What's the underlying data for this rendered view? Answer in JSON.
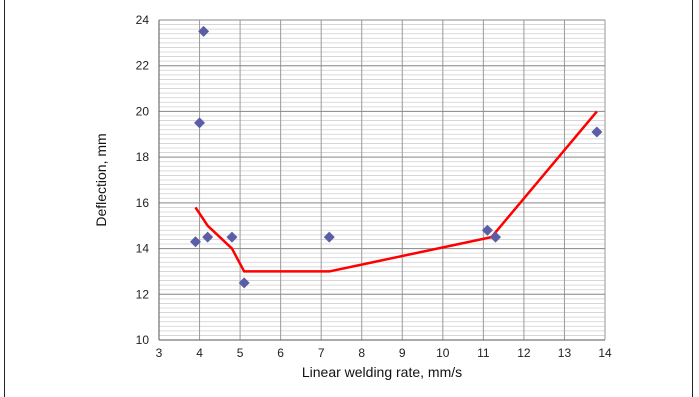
{
  "chart_data": {
    "type": "scatter",
    "title": "",
    "xlabel": "Linear welding rate, mm/s",
    "ylabel": "Deflection, mm",
    "xlim": [
      3,
      14
    ],
    "ylim": [
      10,
      24
    ],
    "x_ticks": [
      3,
      4,
      5,
      6,
      7,
      8,
      9,
      10,
      11,
      12,
      13,
      14
    ],
    "y_ticks": [
      10,
      12,
      14,
      16,
      18,
      20,
      22,
      24
    ],
    "grid": true,
    "series": [
      {
        "kind": "scatter",
        "marker": "diamond",
        "color": "#5b5ea6",
        "points": [
          {
            "x": 3.9,
            "y": 14.3
          },
          {
            "x": 4.0,
            "y": 19.5
          },
          {
            "x": 4.1,
            "y": 23.5
          },
          {
            "x": 4.2,
            "y": 14.5
          },
          {
            "x": 4.8,
            "y": 14.5
          },
          {
            "x": 5.1,
            "y": 12.5
          },
          {
            "x": 7.2,
            "y": 14.5
          },
          {
            "x": 11.1,
            "y": 14.8
          },
          {
            "x": 11.3,
            "y": 14.5
          },
          {
            "x": 13.8,
            "y": 19.1
          }
        ]
      },
      {
        "kind": "line",
        "color": "#ff0000",
        "points": [
          {
            "x": 3.9,
            "y": 15.8
          },
          {
            "x": 4.2,
            "y": 15.0
          },
          {
            "x": 4.8,
            "y": 14.0
          },
          {
            "x": 5.1,
            "y": 13.0
          },
          {
            "x": 7.2,
            "y": 13.0
          },
          {
            "x": 11.2,
            "y": 14.5
          },
          {
            "x": 13.8,
            "y": 20.0
          }
        ]
      }
    ]
  }
}
